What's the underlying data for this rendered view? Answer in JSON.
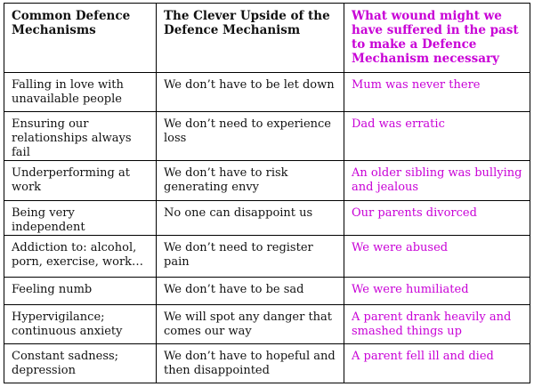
{
  "table": {
    "headers": [
      "Common Defence Mechanisms",
      "The Clever Upside of the Defence Mechanism",
      "What wound might we have suffered in the past to make a Defence Mechanism necessary"
    ],
    "rows": [
      [
        "Falling in love with unavailable people",
        "We don’t have to be let down",
        "Mum was never there"
      ],
      [
        "Ensuring our relationships always fail",
        "We don’t need to experience loss",
        "Dad was erratic"
      ],
      [
        "Underperforming at work",
        "We don’t have to risk generating envy",
        "An older sibling was bullying and jealous"
      ],
      [
        "Being very independent",
        "No one can disappoint us",
        "Our parents divorced"
      ],
      [
        "Addiction to: alcohol, porn, exercise, work…",
        "We don’t need to register pain",
        "We were abused"
      ],
      [
        "Feeling numb",
        "We don’t have to be sad",
        "We were humiliated"
      ],
      [
        "Hypervigilance; continuous anxiety",
        "We will spot any danger that comes our way",
        "A parent drank heavily and smashed things up"
      ],
      [
        "Constant sadness; depression",
        "We don’t have to hopeful and then disappointed",
        "A parent fell ill and died"
      ]
    ]
  },
  "colors": {
    "text": "#111111",
    "accent_magenta": "#c800d6",
    "border": "#000000",
    "background": "#ffffff"
  }
}
